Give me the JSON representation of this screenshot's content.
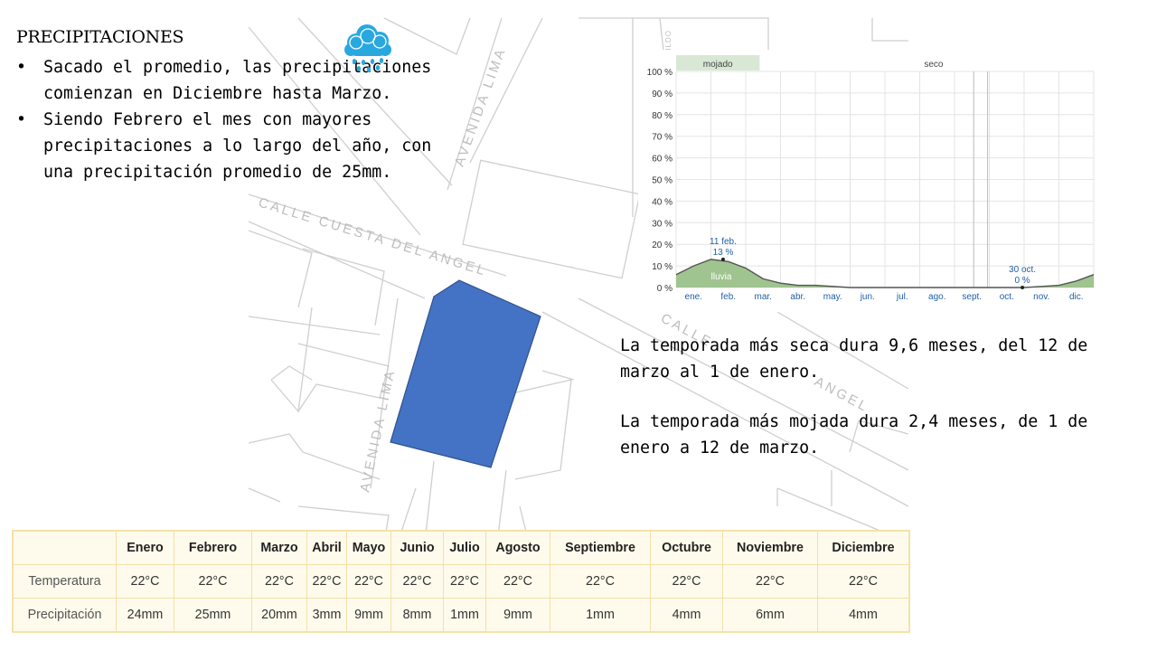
{
  "heading": "PRECIPITACIONES",
  "bullets": [
    "Sacado el promedio, las precipitaciones comienzan en Diciembre hasta Marzo.",
    "Siendo Febrero el mes con mayores precipitaciones a lo largo del año, con una precipitación promedio de 25mm."
  ],
  "map_labels": {
    "avenida_lima_top": "AVENIDA LIMA",
    "calle_cuesta": "CALLE CUESTA DEL ANGEL",
    "avenida_lima_bottom": "AVENIDA LIMA",
    "calle_right": "CALLE",
    "angel_right": "ANGEL",
    "bildo": "BILDO"
  },
  "icon": {
    "name": "rain-cloud-icon",
    "color": "#29a8e0"
  },
  "colors": {
    "plot_blue": "#4472c4",
    "wet_band": "#d9e8d5",
    "area_green": "#9fc490",
    "label_blue": "#1f5fa8"
  },
  "chart_data": {
    "type": "area",
    "bands": [
      "mojado",
      "seco"
    ],
    "y_ticks": [
      "100 %",
      "90 %",
      "80 %",
      "70 %",
      "60 %",
      "50 %",
      "40 %",
      "30 %",
      "20 %",
      "10 %",
      "0 %"
    ],
    "ylim": [
      0,
      100
    ],
    "months": [
      "ene.",
      "feb.",
      "mar.",
      "abr.",
      "may.",
      "jun.",
      "jul.",
      "ago.",
      "sept.",
      "oct.",
      "nov.",
      "dic."
    ],
    "series": [
      {
        "name": "lluvia",
        "x": [
          0,
          0.5,
          1,
          1.5,
          2,
          2.5,
          3,
          3.5,
          4,
          5,
          6,
          7,
          8,
          9,
          10,
          10.5,
          11,
          11.5,
          12
        ],
        "values": [
          6,
          10,
          13,
          12,
          9,
          4,
          2,
          1,
          1,
          0,
          0,
          0,
          0,
          0,
          0,
          0.5,
          1,
          3,
          6
        ]
      }
    ],
    "annotations": [
      {
        "date": "11 feb.",
        "value": "13 %",
        "x": 1.35,
        "y": 13
      },
      {
        "date": "30 oct.",
        "value": "0 %",
        "x": 9.95,
        "y": 0
      }
    ],
    "area_label": "lluvia",
    "grid": true
  },
  "paragraphs": [
    "La temporada más seca dura 9,6 meses, del 12 de marzo al 1 de enero.",
    "La temporada más mojada dura 2,4 meses, de 1 de enero a 12 de marzo."
  ],
  "table": {
    "months": [
      "Enero",
      "Febrero",
      "Marzo",
      "Abril",
      "Mayo",
      "Junio",
      "Julio",
      "Agosto",
      "Septiembre",
      "Octubre",
      "Noviembre",
      "Diciembre"
    ],
    "rows": [
      {
        "label": "Temperatura",
        "values": [
          "22°C",
          "22°C",
          "22°C",
          "22°C",
          "22°C",
          "22°C",
          "22°C",
          "22°C",
          "22°C",
          "22°C",
          "22°C",
          "22°C"
        ]
      },
      {
        "label": "Precipitación",
        "values": [
          "24mm",
          "25mm",
          "20mm",
          "3mm",
          "9mm",
          "8mm",
          "1mm",
          "9mm",
          "1mm",
          "4mm",
          "6mm",
          "4mm"
        ]
      }
    ]
  }
}
